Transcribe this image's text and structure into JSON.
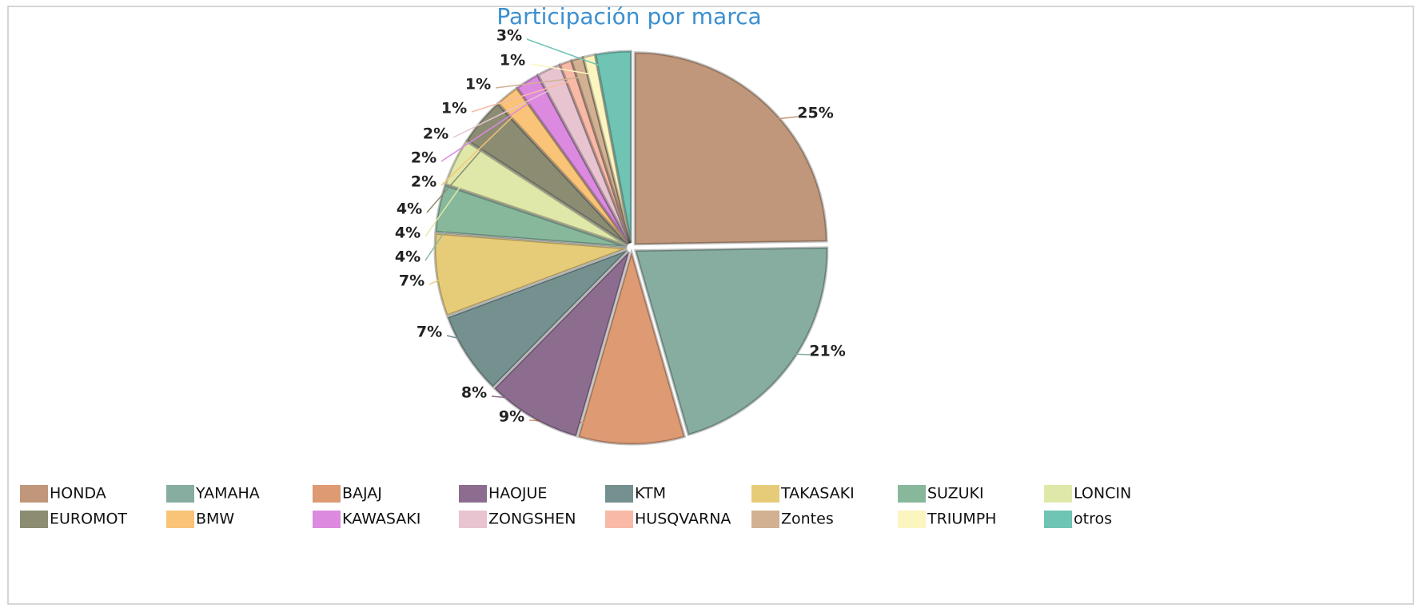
{
  "chart_data": {
    "type": "pie",
    "title": "Participación por marca",
    "categories": [
      "HONDA",
      "YAMAHA",
      "BAJAJ",
      "HAOJUE",
      "KTM",
      "TAKASAKI",
      "SUZUKI",
      "LONCIN",
      "EUROMOT",
      "BMW",
      "KAWASAKI",
      "ZONGSHEN",
      "HUSQVARNA",
      "Zontes",
      "TRIUMPH",
      "otros"
    ],
    "values": [
      25,
      21,
      9,
      8,
      7,
      7,
      4,
      4,
      4,
      2,
      2,
      2,
      1,
      1,
      1,
      3
    ],
    "value_labels": [
      "25%",
      "21%",
      "9%",
      "8%",
      "7%",
      "7%",
      "4%",
      "4%",
      "4%",
      "2%",
      "2%",
      "2%",
      "1%",
      "1%",
      "1%",
      "3%"
    ],
    "colors": [
      "#c0977a",
      "#86ada0",
      "#dd9a73",
      "#8c6d8f",
      "#74908f",
      "#e6cc78",
      "#87b89c",
      "#dfe8a9",
      "#8c8c73",
      "#f9c378",
      "#dc8ae0",
      "#e8c3d0",
      "#f8b9a6",
      "#d1b192",
      "#fdf5c0",
      "#6fc4b4"
    ],
    "legend": "bottom"
  }
}
